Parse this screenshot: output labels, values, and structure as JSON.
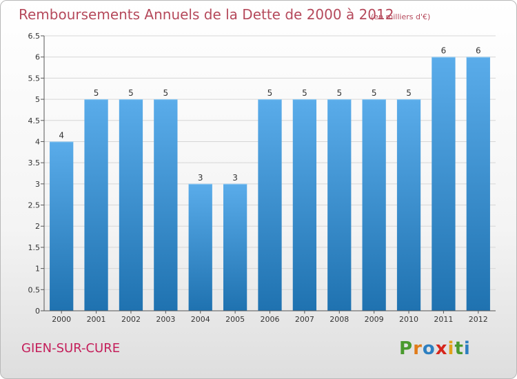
{
  "chart_data": {
    "type": "bar",
    "title": "Remboursements Annuels de la Dette de 2000 à 2012",
    "subtitle": "(en milliers d'€)",
    "categories": [
      "2000",
      "2001",
      "2002",
      "2003",
      "2004",
      "2005",
      "2006",
      "2007",
      "2008",
      "2009",
      "2010",
      "2011",
      "2012"
    ],
    "values": [
      4,
      5,
      5,
      5,
      3,
      3,
      5,
      5,
      5,
      5,
      5,
      6,
      6
    ],
    "data_labels": [
      "4",
      "5",
      "5",
      "5",
      "3",
      "3",
      "5",
      "5",
      "5",
      "5",
      "5",
      "6",
      "6"
    ],
    "ylim": [
      0,
      6.5
    ],
    "yticks": [
      0,
      0.5,
      1,
      1.5,
      2,
      2.5,
      3,
      3.5,
      4,
      4.5,
      5,
      5.5,
      6,
      6.5
    ],
    "ytick_labels": [
      "0",
      "0.5",
      "1",
      "1.5",
      "2",
      "2.5",
      "3",
      "3.5",
      "4",
      "4.5",
      "5",
      "5.5",
      "6",
      "6.5"
    ],
    "grid": true,
    "colors": {
      "bar_top": "#5aacea",
      "bar_bottom": "#1f72b0",
      "grid": "#d6d6d6",
      "title": "#b5495b"
    }
  },
  "footer": {
    "place": "GIEN-SUR-CURE",
    "logo_letters": [
      {
        "char": "P",
        "color": "#4a9a2e"
      },
      {
        "char": "r",
        "color": "#e07b1a"
      },
      {
        "char": "o",
        "color": "#2d7fc1"
      },
      {
        "char": "x",
        "color": "#d6261c"
      },
      {
        "char": "i",
        "color": "#e2a21a"
      },
      {
        "char": "t",
        "color": "#4a9a2e"
      },
      {
        "char": "i",
        "color": "#2d7fc1"
      }
    ]
  }
}
